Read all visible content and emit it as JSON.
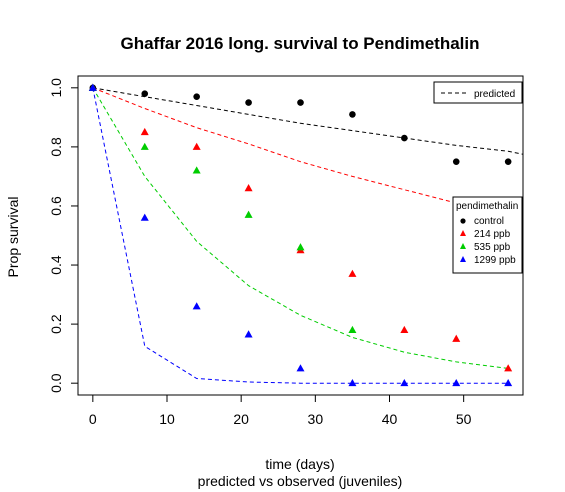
{
  "chart_data": {
    "type": "scatter",
    "title": "Ghaffar 2016 long. survival to Pendimethalin",
    "xlabel": "time (days)",
    "subtitle": "predicted vs observed (juveniles)",
    "ylabel": "Prop survival",
    "xlim": [
      -2,
      58
    ],
    "ylim": [
      -0.04,
      1.04
    ],
    "x_ticks": [
      0,
      10,
      20,
      30,
      40,
      50
    ],
    "y_ticks": [
      0.0,
      0.2,
      0.4,
      0.6,
      0.8,
      1.0
    ],
    "y_tick_labels": [
      "0.0",
      "0.2",
      "0.4",
      "0.6",
      "0.8",
      "1.0"
    ],
    "legend_predicted": {
      "label": "predicted",
      "position": "top-right"
    },
    "legend": {
      "title": "pendimethalin",
      "position": "right"
    },
    "series": [
      {
        "name": "control",
        "color": "#000000",
        "marker": "circle",
        "observed": {
          "x": [
            0,
            7,
            14,
            21,
            28,
            35,
            42,
            49,
            56
          ],
          "y": [
            1.0,
            0.98,
            0.97,
            0.95,
            0.95,
            0.91,
            0.83,
            0.75,
            0.75
          ]
        },
        "predicted": {
          "x": [
            0,
            7,
            14,
            21,
            28,
            35,
            42,
            49,
            56,
            58
          ],
          "y": [
            1.0,
            0.97,
            0.94,
            0.91,
            0.88,
            0.855,
            0.83,
            0.805,
            0.785,
            0.775
          ]
        }
      },
      {
        "name": "214 ppb",
        "color": "#ff0000",
        "marker": "triangle",
        "observed": {
          "x": [
            0,
            7,
            14,
            21,
            28,
            35,
            42,
            49,
            56
          ],
          "y": [
            1.0,
            0.85,
            0.8,
            0.66,
            0.45,
            0.37,
            0.18,
            0.15,
            0.05
          ]
        },
        "predicted": {
          "x": [
            0,
            7,
            14,
            21,
            28,
            35,
            42,
            49
          ],
          "y": [
            1.0,
            0.93,
            0.865,
            0.81,
            0.75,
            0.7,
            0.655,
            0.61
          ]
        }
      },
      {
        "name": "535 ppb",
        "color": "#00cd00",
        "marker": "triangle",
        "observed": {
          "x": [
            0,
            7,
            14,
            21,
            28,
            35
          ],
          "y": [
            1.0,
            0.8,
            0.72,
            0.57,
            0.46,
            0.18
          ]
        },
        "predicted": {
          "x": [
            0,
            7,
            14,
            21,
            28,
            35,
            42,
            49,
            56
          ],
          "y": [
            1.0,
            0.7,
            0.48,
            0.33,
            0.23,
            0.155,
            0.105,
            0.072,
            0.05
          ]
        }
      },
      {
        "name": "1299 ppb",
        "color": "#0000ff",
        "marker": "triangle",
        "observed": {
          "x": [
            0,
            7,
            14,
            21,
            28,
            35,
            42,
            49,
            56
          ],
          "y": [
            1.0,
            0.56,
            0.26,
            0.165,
            0.05,
            0.0,
            0.0,
            0.0,
            0.0
          ]
        },
        "predicted": {
          "x": [
            0,
            7,
            14,
            21,
            28,
            35,
            42,
            49,
            56
          ],
          "y": [
            1.0,
            0.125,
            0.016,
            0.004,
            0.0,
            0.0,
            0.0,
            0.0,
            0.0
          ]
        }
      }
    ]
  }
}
